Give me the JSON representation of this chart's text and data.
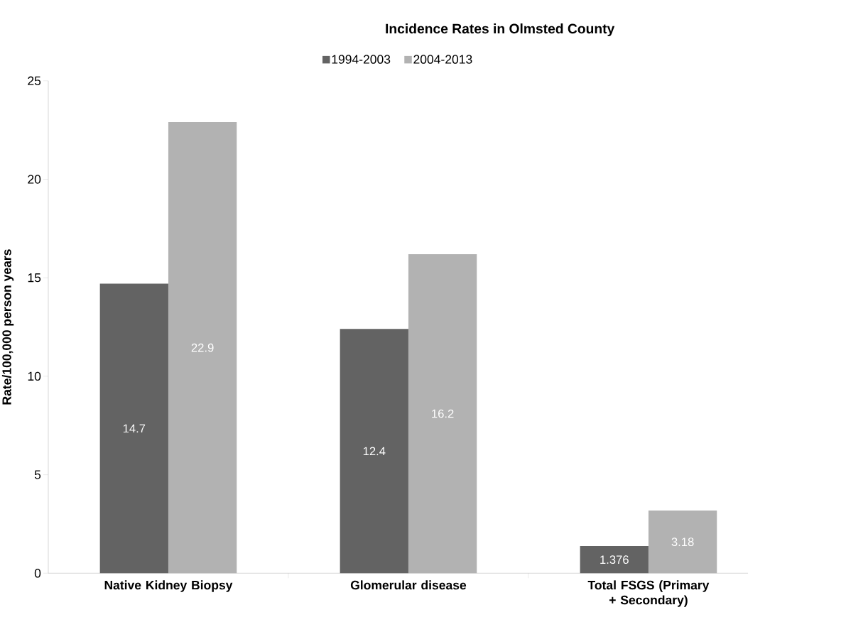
{
  "chart_data": {
    "type": "bar",
    "title": "Incidence Rates in Olmsted County",
    "ylabel": "Rate/100,000  person years",
    "categories": [
      "Native Kidney Biopsy",
      "Glomerular disease",
      "Total FSGS (Primary + Secondary)"
    ],
    "series": [
      {
        "name": "1994-2003",
        "color": "#636363",
        "values": [
          14.7,
          12.4,
          1.376
        ],
        "value_labels": [
          "14.7",
          "12.4",
          "1.376"
        ]
      },
      {
        "name": "2004-2013",
        "color": "#b2b2b2",
        "values": [
          22.9,
          16.2,
          3.18
        ],
        "value_labels": [
          "22.9",
          "16.2",
          "3.18"
        ]
      }
    ],
    "ylim": [
      0,
      25
    ],
    "yticks": [
      0,
      5,
      10,
      15,
      20,
      25
    ],
    "legend": "top"
  }
}
